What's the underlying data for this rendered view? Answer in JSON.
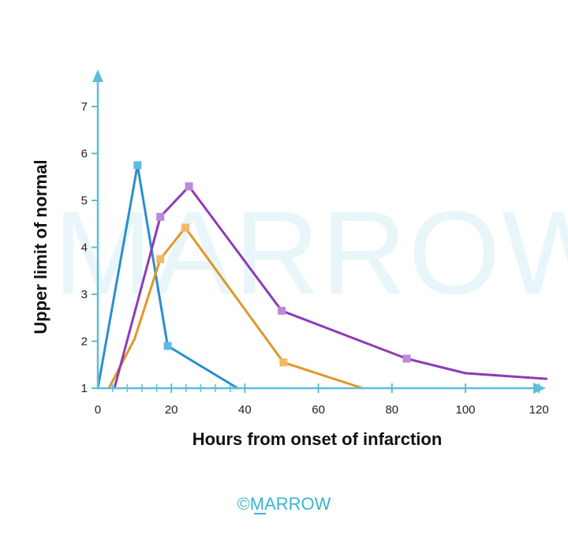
{
  "colors": {
    "axis": "#5bbfd6",
    "watermark": "#e8f6fa",
    "brand": "#3ab4d0"
  },
  "watermark_text": "MARROW",
  "brand_text": "©MARROW",
  "chart_data": {
    "type": "line",
    "title": "",
    "xlabel": "Hours from onset of infarction",
    "ylabel": "Upper limit of normal",
    "xlim": [
      0,
      122
    ],
    "ylim": [
      1,
      7.6
    ],
    "xticks": [
      0,
      20,
      40,
      60,
      80,
      100,
      120
    ],
    "yticks": [
      1,
      2,
      3,
      4,
      5,
      6,
      7
    ],
    "minor_xticks": [
      4,
      8,
      12,
      16,
      24,
      28,
      32,
      36
    ],
    "grid": false,
    "legend": "none",
    "series": [
      {
        "name": "blue",
        "color": "#2a8fcc",
        "marker_color": "#5db8e8",
        "points": [
          [
            0,
            1
          ],
          [
            10.8,
            5.75
          ],
          [
            19,
            1.9
          ],
          [
            38,
            1
          ]
        ],
        "markers": [
          [
            10.8,
            5.75
          ],
          [
            19,
            1.9
          ]
        ]
      },
      {
        "name": "orange",
        "color": "#e0972a",
        "marker_color": "#f2b868",
        "points": [
          [
            3,
            1
          ],
          [
            10,
            2.05
          ],
          [
            17,
            3.75
          ],
          [
            23.8,
            4.42
          ],
          [
            50.5,
            1.55
          ],
          [
            72,
            1
          ]
        ],
        "markers": [
          [
            17,
            3.75
          ],
          [
            23.8,
            4.42
          ],
          [
            50.5,
            1.55
          ]
        ]
      },
      {
        "name": "purple",
        "color": "#8e3ab8",
        "marker_color": "#b98ad8",
        "points": [
          [
            4.5,
            1
          ],
          [
            17,
            4.65
          ],
          [
            24.8,
            5.3
          ],
          [
            50,
            2.65
          ],
          [
            84,
            1.63
          ],
          [
            100,
            1.32
          ],
          [
            122,
            1.2
          ]
        ],
        "markers": [
          [
            17,
            4.65
          ],
          [
            24.8,
            5.3
          ],
          [
            50,
            2.65
          ],
          [
            84,
            1.63
          ]
        ]
      }
    ]
  }
}
